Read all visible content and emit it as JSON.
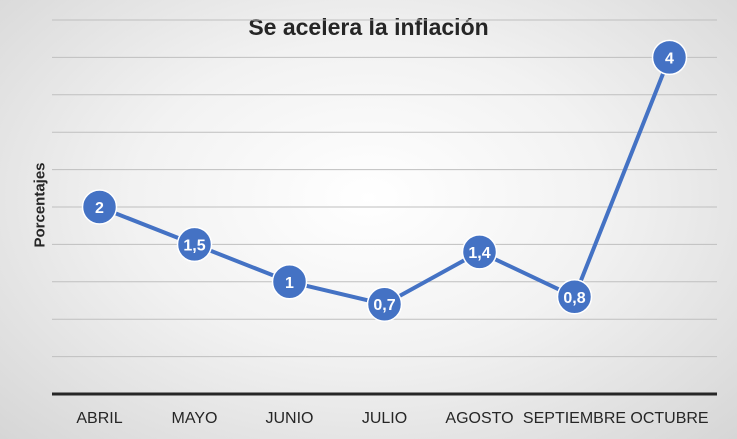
{
  "chart_data": {
    "type": "line",
    "title": "Se acelera la inflación",
    "xlabel": "",
    "ylabel": "Porcentajes",
    "categories": [
      "ABRIL",
      "MAYO",
      "JUNIO",
      "JULIO",
      "AGOSTO",
      "SEPTIEMBRE",
      "OCTUBRE"
    ],
    "series": [
      {
        "values": [
          2,
          1.5,
          1,
          0.7,
          1.4,
          0.8,
          4
        ],
        "labels": [
          "2",
          "1,5",
          "1",
          "0,7",
          "1,4",
          "0,8",
          "4"
        ],
        "color": "#4472c4"
      }
    ],
    "ylim": [
      -0.5,
      4.5
    ],
    "grid": true,
    "legend": "none"
  }
}
